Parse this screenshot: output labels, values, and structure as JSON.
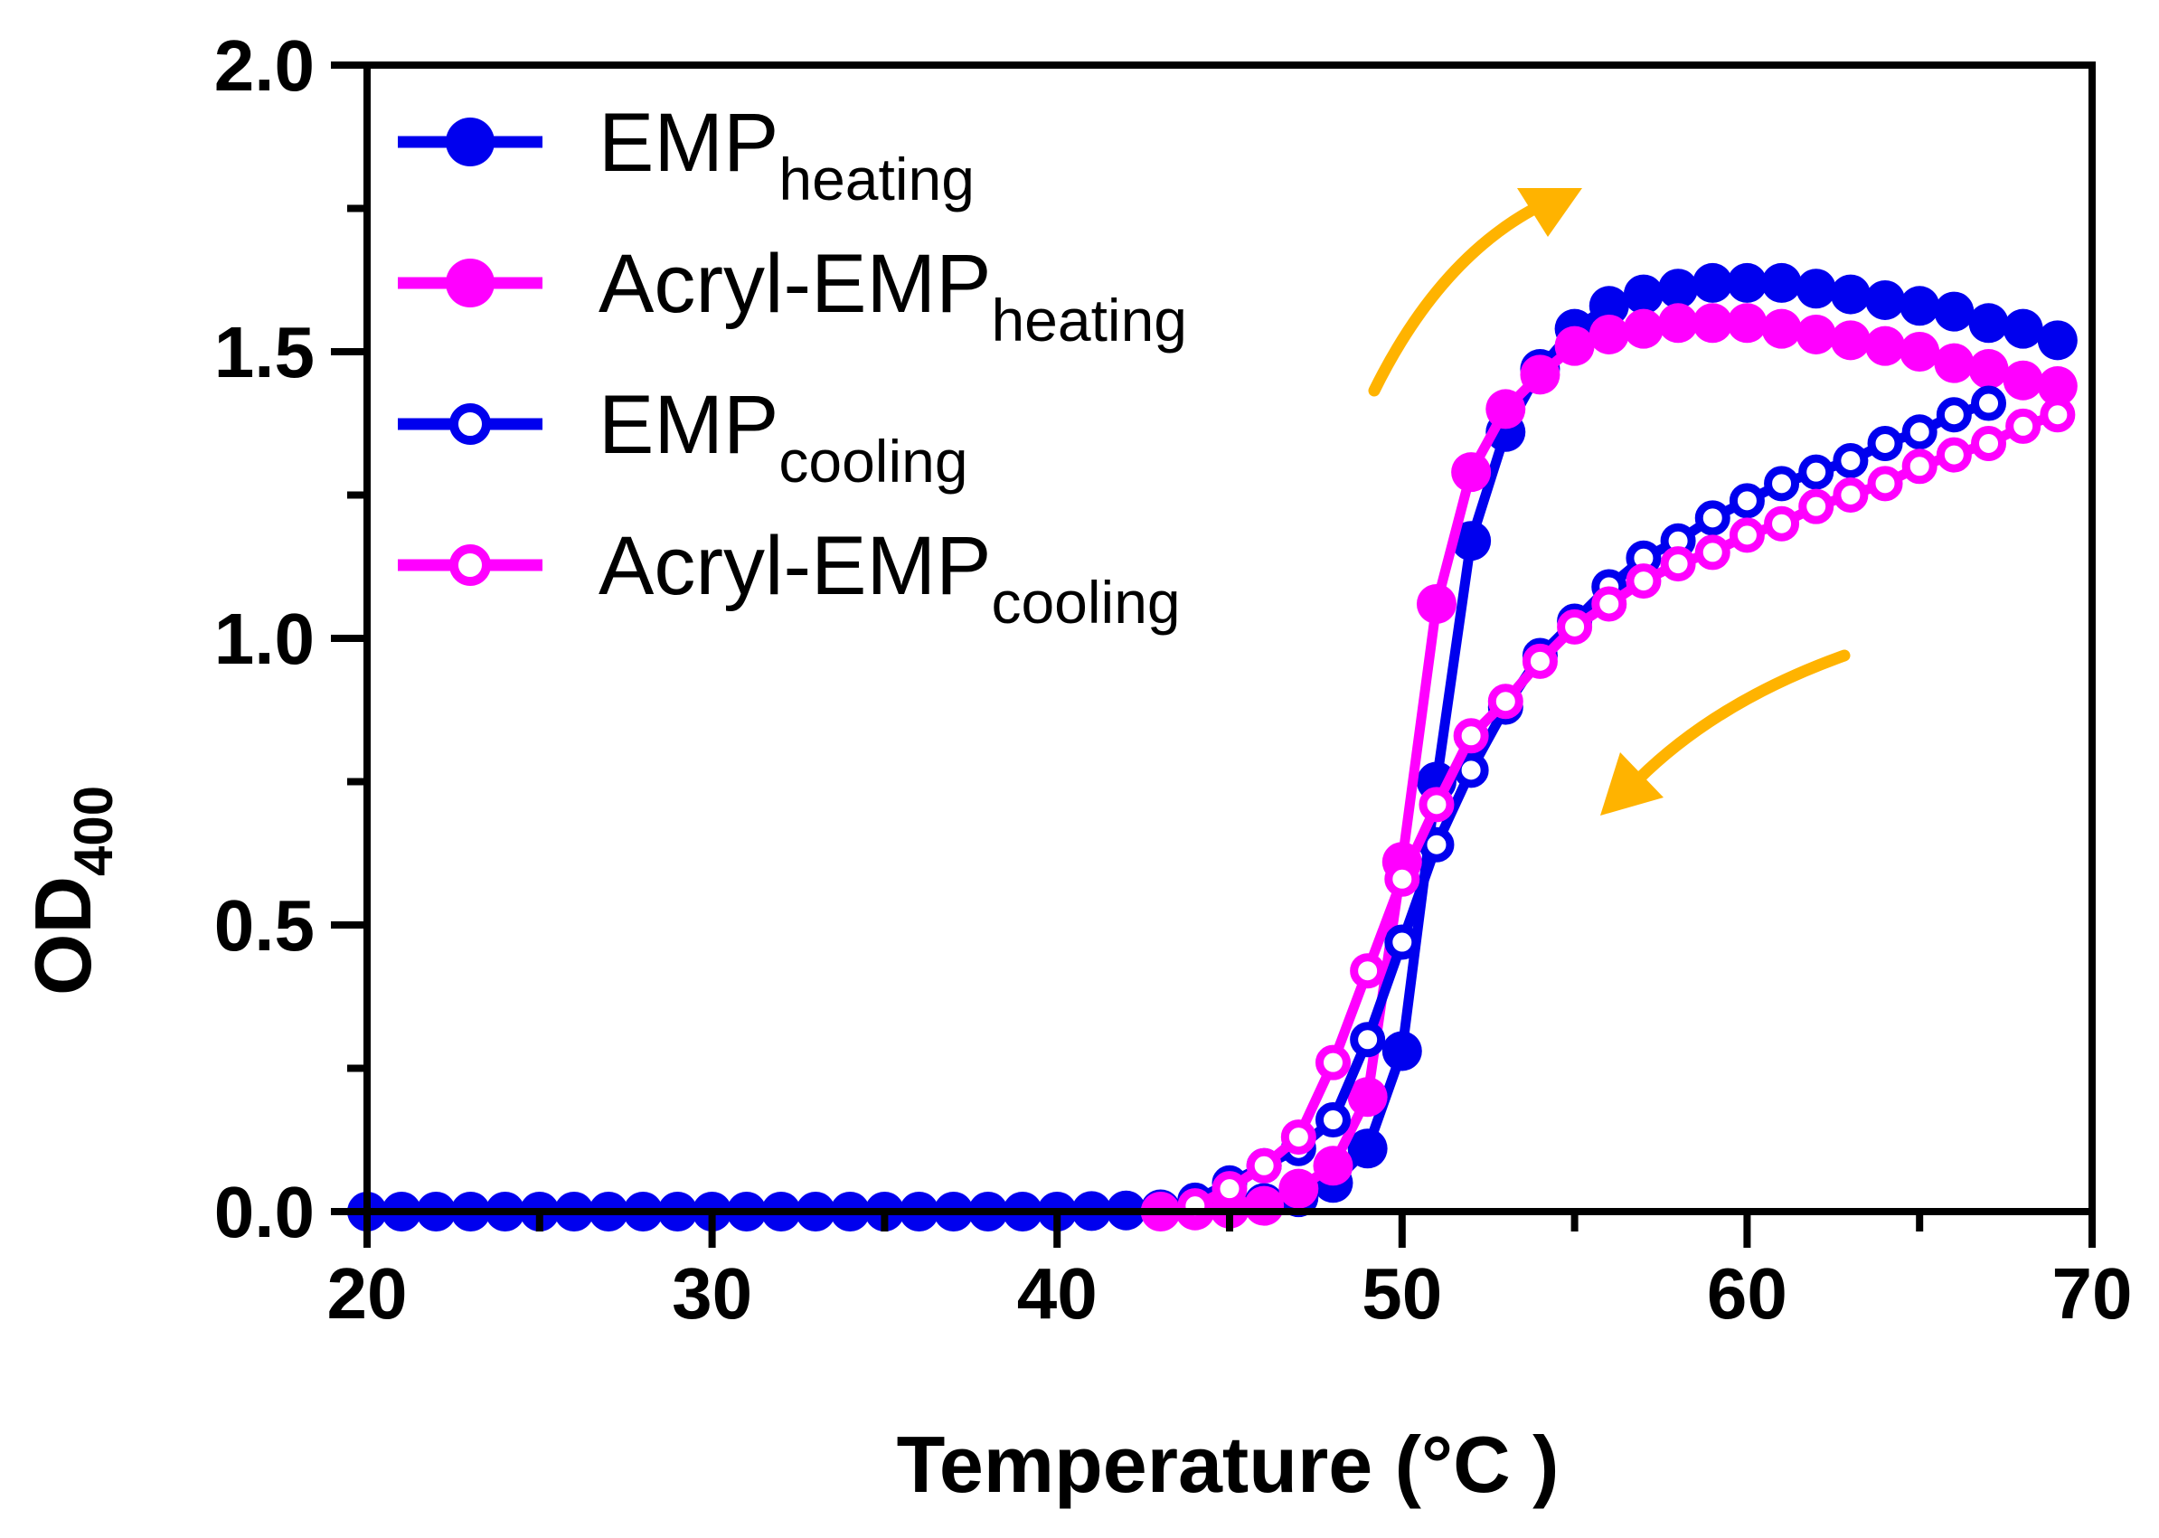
{
  "chart_data": {
    "type": "line",
    "title": "",
    "xlabel": "Temperature (°C )",
    "ylabel_main": "OD",
    "ylabel_sub": "400",
    "xlim": [
      20,
      70
    ],
    "ylim": [
      0,
      2.0
    ],
    "xticks": [
      20,
      30,
      40,
      50,
      60,
      70
    ],
    "yticks": [
      0.0,
      0.5,
      1.0,
      1.5,
      2.0
    ],
    "xtick_labels": [
      "20",
      "30",
      "40",
      "50",
      "60",
      "70"
    ],
    "ytick_labels": [
      "0.0",
      "0.5",
      "1.0",
      "1.5",
      "2.0"
    ],
    "grid": false,
    "legend_position": "top-left",
    "series": [
      {
        "name": "EMP_heating",
        "label_main": "EMP",
        "label_sub": "heating",
        "color": "#0000EE",
        "marker": "filled",
        "x": [
          20,
          21,
          22,
          23,
          24,
          25,
          26,
          27,
          28,
          29,
          30,
          31,
          32,
          33,
          34,
          35,
          36,
          37,
          38,
          39,
          40,
          41,
          42,
          43,
          44,
          45,
          46,
          47,
          48,
          49,
          50,
          51,
          52,
          53,
          54,
          55,
          56,
          57,
          58,
          59,
          60,
          61,
          62,
          63,
          64,
          65,
          66,
          67,
          68,
          69
        ],
        "y": [
          0,
          0,
          0,
          0,
          0,
          0,
          0,
          0,
          0,
          0,
          0,
          0,
          0,
          0,
          0,
          0,
          0,
          0,
          0,
          0,
          0,
          0.001,
          0.002,
          0.004,
          0.006,
          0.01,
          0.015,
          0.025,
          0.05,
          0.11,
          0.28,
          0.75,
          1.17,
          1.36,
          1.47,
          1.54,
          1.58,
          1.6,
          1.61,
          1.62,
          1.62,
          1.62,
          1.61,
          1.6,
          1.59,
          1.58,
          1.57,
          1.55,
          1.54,
          1.52
        ]
      },
      {
        "name": "Acryl-EMP_heating",
        "label_main": "Acryl-EMP",
        "label_sub": "heating",
        "color": "#FF00FF",
        "marker": "filled",
        "x": [
          43,
          44,
          45,
          46,
          47,
          48,
          49,
          50,
          51,
          52,
          53,
          54,
          55,
          56,
          57,
          58,
          59,
          60,
          61,
          62,
          63,
          64,
          65,
          66,
          67,
          68,
          69
        ],
        "y": [
          0,
          0.002,
          0.005,
          0.01,
          0.04,
          0.08,
          0.2,
          0.61,
          1.06,
          1.29,
          1.4,
          1.46,
          1.51,
          1.53,
          1.54,
          1.55,
          1.55,
          1.55,
          1.54,
          1.53,
          1.52,
          1.51,
          1.5,
          1.48,
          1.47,
          1.45,
          1.44
        ]
      },
      {
        "name": "EMP_cooling",
        "label_main": "EMP",
        "label_sub": "cooling",
        "color": "#0000EE",
        "marker": "open",
        "x": [
          67,
          66,
          65,
          64,
          63,
          62,
          61,
          60,
          59,
          58,
          57,
          56,
          55,
          54,
          53,
          52,
          51,
          50,
          49,
          48,
          47,
          46,
          45,
          44
        ],
        "y": [
          1.41,
          1.39,
          1.36,
          1.34,
          1.31,
          1.29,
          1.27,
          1.24,
          1.21,
          1.17,
          1.14,
          1.09,
          1.03,
          0.97,
          0.88,
          0.77,
          0.64,
          0.47,
          0.3,
          0.16,
          0.11,
          0.08,
          0.05,
          0.02
        ]
      },
      {
        "name": "Acryl-EMP_cooling",
        "label_main": "Acryl-EMP",
        "label_sub": "cooling",
        "color": "#FF00FF",
        "marker": "open",
        "x": [
          69,
          68,
          67,
          66,
          65,
          64,
          63,
          62,
          61,
          60,
          59,
          58,
          57,
          56,
          55,
          54,
          53,
          52,
          51,
          50,
          49,
          48,
          47,
          46,
          45,
          44
        ],
        "y": [
          1.39,
          1.37,
          1.34,
          1.32,
          1.3,
          1.27,
          1.25,
          1.23,
          1.2,
          1.18,
          1.15,
          1.13,
          1.1,
          1.06,
          1.02,
          0.96,
          0.89,
          0.83,
          0.71,
          0.58,
          0.42,
          0.26,
          0.13,
          0.08,
          0.04,
          0.01
        ]
      }
    ],
    "annotations": [
      {
        "type": "arrow",
        "meaning": "heating direction (up)",
        "color": "#FFB300"
      },
      {
        "type": "arrow",
        "meaning": "cooling direction (down)",
        "color": "#FFB300"
      }
    ]
  }
}
